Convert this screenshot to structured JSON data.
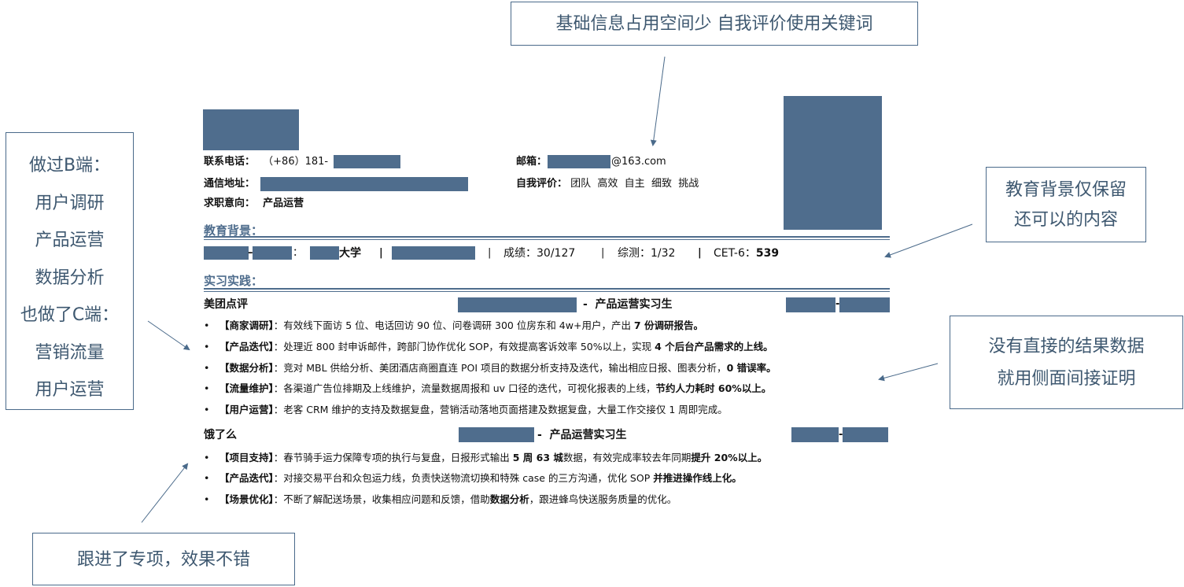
{
  "callouts": {
    "top": "基础信息占用空间少 自我评价使用关键词",
    "left": [
      "做过B端：",
      "用户调研",
      "产品运营",
      "数据分析",
      "也做了C端：",
      "营销流量",
      "用户运营"
    ],
    "right1": [
      "教育背景仅保留",
      "还可以的内容"
    ],
    "right2": [
      "没有直接的结果数据",
      "就用侧面间接证明"
    ],
    "bottom": "跟进了专项，效果不错"
  },
  "resume": {
    "phone_label": "联系电话：",
    "phone_value": "（+86）181-",
    "address_label": "通信地址：",
    "intent_label": "求职意向：",
    "intent_value": "产品运营",
    "email_label": "邮箱：",
    "email_value": "@163.com",
    "self_label": "自我评价：",
    "self_value": "团队  高效  自主  细致  挑战",
    "edu_title": "教育背景：",
    "edu": {
      "sep1": "–",
      "colon": "：",
      "school": "大学",
      "bar": "|",
      "grade": "成绩：30/127",
      "overall": "综测：1/32",
      "cet_label": "CET-6：",
      "cet_value": "539"
    },
    "intern_title": "实习实践：",
    "jobs": [
      {
        "company": "美团点评",
        "role": "-  产品运营实习生",
        "date_sep": "-",
        "bullets": [
          {
            "tag": "【商家调研】",
            "text": "：有效线下面访 5 位、电话回访 90 位、问卷调研 300 位房东和 4w+用户，产出 ",
            "bold": "7 份调研报告。"
          },
          {
            "tag": "【产品迭代】",
            "text": "：处理近 800 封申诉邮件，跨部门协作优化 SOP，有效提高客诉效率 50%以上，实现 ",
            "bold": "4 个后台产品需求的上线。"
          },
          {
            "tag": "【数据分析】",
            "text": "：竞对 MBL 供给分析、美团酒店商圈直连 POI 项目的数据分析支持及迭代，输出相应日报、图表分析，",
            "bold": "0 错误率。"
          },
          {
            "tag": "【流量维护】",
            "text": "：各渠道广告位排期及上线维护，流量数据周报和 uv 口径的迭代，可视化报表的上线，",
            "bold": "节约人力耗时 60%以上。"
          },
          {
            "tag": "【用户运营】",
            "text": "：老客 CRM 维护的支持及数据复盘，营销活动落地页面搭建及数据复盘，大量工作交接仅 1 周即完成。",
            "bold": ""
          }
        ]
      },
      {
        "company": "饿了么",
        "role": "-  产品运营实习生",
        "date_sep": "-",
        "bullets": [
          {
            "tag": "【项目支持】",
            "text": "：春节骑手运力保障专项的执行与复盘，日报形式输出 ",
            "bold": "5 周 63 城",
            "text2": "数据，有效完成率较去年同期",
            "bold2": "提升 20%以上。"
          },
          {
            "tag": "【产品迭代】",
            "text": "：对接交易平台和众包运力线，负责快送物流切换和特殊 case 的三方沟通，优化 SOP ",
            "bold": "并推进操作线上化。"
          },
          {
            "tag": "【场景优化】",
            "text": "：不断了解配送场景，收集相应问题和反馈，借助",
            "bold": "数据分析",
            "text2": "，跟进蜂鸟快送服务质量的优化。"
          }
        ]
      }
    ]
  },
  "colors": {
    "accent": "#4f6d8d",
    "callout_text": "#3e5870"
  }
}
